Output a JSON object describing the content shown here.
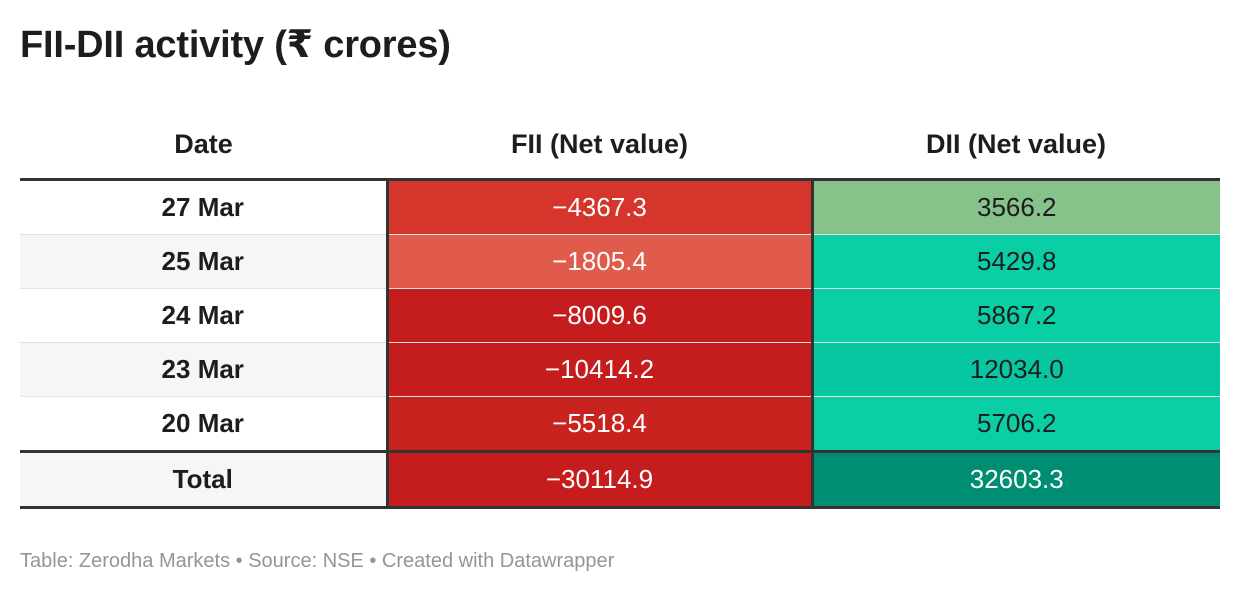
{
  "title": "FII-DII activity (₹ crores)",
  "colors": {
    "fii_light": "#e05b4b",
    "fii_mid": "#d6352b",
    "fii_dark": "#c51d1d",
    "dii_light": "#87c28b",
    "dii_mid": "#0acfa5",
    "dii_total": "#008e72"
  },
  "chart_data": {
    "type": "table",
    "title": "FII-DII activity (₹ crores)",
    "columns": [
      "Date",
      "FII (Net value)",
      "DII (Net value)"
    ],
    "rows": [
      {
        "date": "27 Mar",
        "fii": "−4367.3",
        "dii": "3566.2",
        "fii_color": "#d6352b",
        "dii_color": "#87c28b"
      },
      {
        "date": "25 Mar",
        "fii": "−1805.4",
        "dii": "5429.8",
        "fii_color": "#e05b4b",
        "dii_color": "#0acfa5"
      },
      {
        "date": "24 Mar",
        "fii": "−8009.6",
        "dii": "5867.2",
        "fii_color": "#c51d1d",
        "dii_color": "#0acfa5"
      },
      {
        "date": "23 Mar",
        "fii": "−10414.2",
        "dii": "12034.0",
        "fii_color": "#c51d1d",
        "dii_color": "#06c7a2"
      },
      {
        "date": "20 Mar",
        "fii": "−5518.4",
        "dii": "5706.2",
        "fii_color": "#c9231f",
        "dii_color": "#0acfa5"
      }
    ],
    "total": {
      "date": "Total",
      "fii": "−30114.9",
      "dii": "32603.3",
      "fii_color": "#c51d1d",
      "dii_color": "#008e72"
    }
  },
  "footer": "Table: Zerodha Markets • Source: NSE • Created with Datawrapper"
}
